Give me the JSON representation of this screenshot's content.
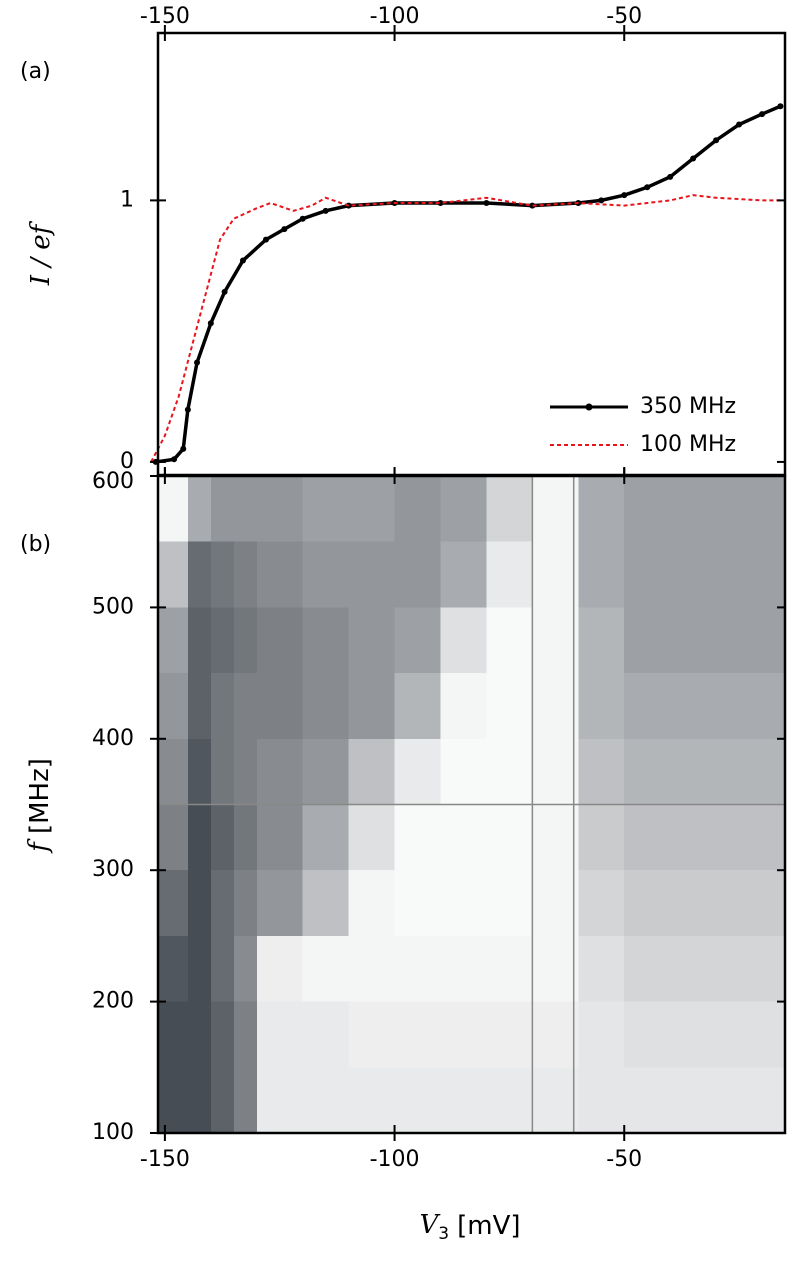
{
  "chart_data": [
    {
      "type": "line",
      "panel_label": "(a)",
      "y_label": "I / ef",
      "xlim": [
        -151.5,
        -15
      ],
      "xticks": [
        -150,
        -100,
        -50
      ],
      "ylim": [
        -0.05,
        1.64
      ],
      "yticks": [
        0,
        1
      ],
      "legend": "lower right",
      "series": [
        {
          "name": "350 MHz",
          "color": "#000000",
          "linestyle": "solid",
          "marker": true,
          "x": [
            -152,
            -148,
            -146,
            -145,
            -143,
            -140,
            -137,
            -133,
            -128,
            -124,
            -120,
            -115,
            -110,
            -100,
            -90,
            -80,
            -70,
            -60,
            -55,
            -50,
            -45,
            -40,
            -35,
            -30,
            -25,
            -20,
            -16
          ],
          "values": [
            0,
            0.01,
            0.05,
            0.2,
            0.38,
            0.53,
            0.65,
            0.77,
            0.85,
            0.89,
            0.93,
            0.96,
            0.98,
            0.99,
            0.99,
            0.99,
            0.98,
            0.99,
            1.0,
            1.02,
            1.05,
            1.09,
            1.16,
            1.23,
            1.29,
            1.33,
            1.36
          ]
        },
        {
          "name": "100 MHz",
          "color": "#e8141c",
          "linestyle": "dashed",
          "marker": false,
          "x": [
            -153,
            -150,
            -147,
            -144,
            -141,
            -138,
            -135,
            -130,
            -127,
            -122,
            -118,
            -115,
            -110,
            -100,
            -90,
            -80,
            -70,
            -60,
            -50,
            -40,
            -35,
            -30,
            -20,
            -16
          ],
          "values": [
            0,
            0.1,
            0.25,
            0.45,
            0.65,
            0.85,
            0.93,
            0.97,
            0.99,
            0.96,
            0.98,
            1.01,
            0.98,
            0.99,
            0.99,
            1.01,
            0.98,
            0.99,
            0.98,
            1.0,
            1.02,
            1.01,
            1.0,
            1.0
          ]
        }
      ]
    },
    {
      "type": "heatmap",
      "panel_label": "(b)",
      "x_label": {
        "symbol": "V",
        "subscript": "3",
        "unit": "[mV]"
      },
      "y_label": {
        "symbol": "f",
        "unit": "[MHz]"
      },
      "xlim": [
        -151.5,
        -15
      ],
      "xticks": [
        -150,
        -100,
        -50
      ],
      "ylim": [
        100,
        600
      ],
      "yticks": [
        100,
        200,
        300,
        400,
        500,
        600
      ],
      "line_color": "#888888",
      "vlines": [
        -70,
        -61
      ],
      "hlines": [
        350
      ],
      "x_bins": [
        -152,
        -145,
        -140,
        -135,
        -130,
        -120,
        -110,
        -100,
        -90,
        -80,
        -70,
        -60,
        -50,
        -40,
        -30,
        -15
      ],
      "y_bins": [
        100,
        150,
        200,
        250,
        300,
        350,
        400,
        450,
        500,
        550,
        600
      ],
      "colors": [
        "#ffffff",
        "#262d36"
      ],
      "z": [
        [
          0.85,
          0.85,
          0.75,
          0.6,
          0.1,
          0.1,
          0.1,
          0.1,
          0.1,
          0.1,
          0.1,
          0.12,
          0.12,
          0.12,
          0.12
        ],
        [
          0.85,
          0.85,
          0.75,
          0.6,
          0.1,
          0.1,
          0.08,
          0.08,
          0.08,
          0.08,
          0.08,
          0.12,
          0.15,
          0.15,
          0.15
        ],
        [
          0.8,
          0.85,
          0.7,
          0.55,
          0.08,
          0.05,
          0.05,
          0.05,
          0.05,
          0.05,
          0.05,
          0.15,
          0.2,
          0.2,
          0.2
        ],
        [
          0.7,
          0.85,
          0.7,
          0.6,
          0.5,
          0.3,
          0.05,
          0.03,
          0.03,
          0.03,
          0.05,
          0.2,
          0.25,
          0.25,
          0.25
        ],
        [
          0.6,
          0.85,
          0.75,
          0.65,
          0.55,
          0.4,
          0.15,
          0.03,
          0.03,
          0.03,
          0.05,
          0.25,
          0.3,
          0.3,
          0.3
        ],
        [
          0.55,
          0.8,
          0.65,
          0.6,
          0.55,
          0.5,
          0.3,
          0.1,
          0.03,
          0.03,
          0.05,
          0.3,
          0.35,
          0.35,
          0.35
        ],
        [
          0.5,
          0.75,
          0.65,
          0.6,
          0.6,
          0.55,
          0.5,
          0.35,
          0.05,
          0.03,
          0.05,
          0.35,
          0.4,
          0.4,
          0.4
        ],
        [
          0.45,
          0.75,
          0.7,
          0.65,
          0.6,
          0.55,
          0.5,
          0.45,
          0.15,
          0.03,
          0.05,
          0.35,
          0.45,
          0.45,
          0.45
        ],
        [
          0.3,
          0.7,
          0.65,
          0.6,
          0.55,
          0.5,
          0.5,
          0.5,
          0.4,
          0.1,
          0.05,
          0.4,
          0.45,
          0.45,
          0.45
        ],
        [
          0.05,
          0.4,
          0.5,
          0.5,
          0.5,
          0.45,
          0.45,
          0.5,
          0.45,
          0.2,
          0.05,
          0.4,
          0.45,
          0.45,
          0.45
        ]
      ]
    }
  ]
}
